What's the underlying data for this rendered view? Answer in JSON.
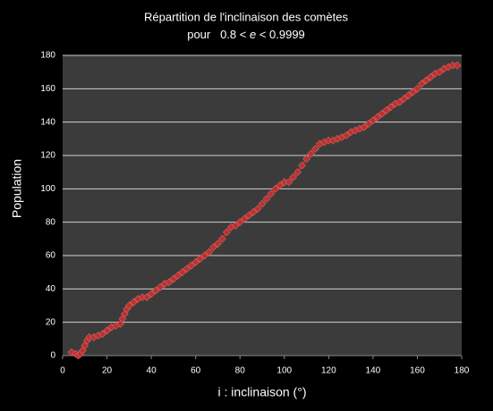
{
  "chart_data": {
    "type": "scatter",
    "title": "Répartition de l'inclinaison des comètes",
    "subtitle_parts": [
      "pour   0.8 < ",
      "e",
      " < 0.9999"
    ],
    "x_label": "i : inclinaison (°)",
    "y_label": "Population",
    "xlim": [
      0,
      180
    ],
    "xticks": [
      0,
      20,
      40,
      60,
      80,
      100,
      120,
      140,
      160,
      180
    ],
    "ylim": [
      0,
      180
    ],
    "yticks": [
      0,
      20,
      40,
      60,
      80,
      100,
      120,
      140,
      160,
      180
    ],
    "grid": true,
    "color": "#b83232",
    "x": [
      4,
      6,
      7,
      8,
      9,
      10,
      11,
      12,
      14,
      16,
      18,
      20,
      22,
      24,
      26,
      27,
      28,
      29,
      30,
      32,
      34,
      36,
      38,
      40,
      42,
      44,
      46,
      48,
      50,
      52,
      54,
      56,
      58,
      60,
      62,
      64,
      66,
      68,
      70,
      72,
      74,
      76,
      78,
      80,
      82,
      84,
      86,
      88,
      90,
      92,
      94,
      96,
      98,
      100,
      102,
      104,
      106,
      108,
      110,
      112,
      114,
      116,
      118,
      120,
      122,
      124,
      126,
      128,
      130,
      132,
      134,
      136,
      138,
      140,
      142,
      144,
      146,
      148,
      150,
      152,
      154,
      156,
      158,
      160,
      162,
      164,
      166,
      168,
      170,
      172,
      174,
      176,
      178
    ],
    "values": [
      2,
      1,
      0,
      1,
      3,
      6,
      9,
      11,
      11,
      12,
      13,
      15,
      17,
      18,
      19,
      22,
      25,
      28,
      30,
      32,
      34,
      35,
      35,
      37,
      39,
      41,
      43,
      44,
      46,
      48,
      50,
      52,
      54,
      56,
      58,
      60,
      62,
      65,
      67,
      70,
      74,
      77,
      78,
      80,
      82,
      84,
      86,
      88,
      91,
      94,
      97,
      100,
      102,
      104,
      104,
      107,
      110,
      114,
      118,
      121,
      124,
      127,
      128,
      129,
      129,
      130,
      131,
      132,
      134,
      135,
      136,
      137,
      139,
      141,
      143,
      145,
      147,
      149,
      151,
      152,
      154,
      156,
      158,
      160,
      163,
      165,
      167,
      169,
      170,
      172,
      173,
      174,
      174
    ]
  }
}
